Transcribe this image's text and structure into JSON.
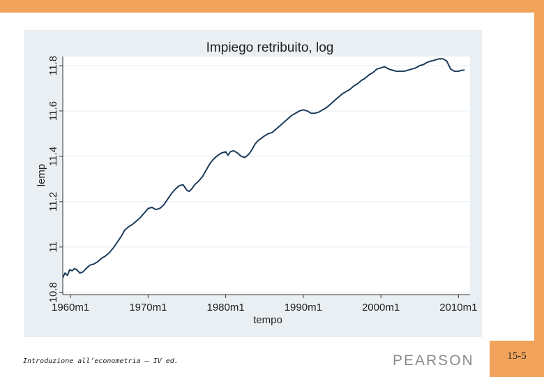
{
  "slide": {
    "footer": "Introduzione all’econometria – IV ed.",
    "publisher": "PEARSON",
    "page_number": "15-5"
  },
  "colors": {
    "accent": "#f2a35b",
    "plot_bg": "#e9eff3",
    "line": "#1b3b5a"
  },
  "chart_data": {
    "type": "line",
    "title": "Impiego retribuito, log",
    "xlabel": "tempo",
    "ylabel": "lemp",
    "x_ticks": [
      "1960m1",
      "1970m1",
      "1980m1",
      "1990m1",
      "2000m1",
      "2010m1"
    ],
    "y_ticks": [
      "10.8",
      "11",
      "11.2",
      "11.4",
      "11.6",
      "11.8"
    ],
    "xlim": [
      1959.0,
      2011.5
    ],
    "ylim": [
      10.79,
      11.84
    ],
    "grid": true,
    "series": [
      {
        "x": [
          1959.0,
          1959.3,
          1959.6,
          1959.9,
          1960.2,
          1960.5,
          1960.8,
          1961.2,
          1961.6,
          1962.0,
          1962.5,
          1963.0,
          1963.5,
          1964.0,
          1964.5,
          1965.0,
          1965.5,
          1966.0,
          1966.5,
          1967.0,
          1967.5,
          1968.0,
          1968.5,
          1969.0,
          1969.5,
          1970.0,
          1970.5,
          1971.0,
          1971.5,
          1972.0,
          1972.5,
          1973.0,
          1973.5,
          1974.0,
          1974.5,
          1975.0,
          1975.3,
          1975.7,
          1976.0,
          1976.5,
          1977.0,
          1977.5,
          1978.0,
          1978.5,
          1979.0,
          1979.5,
          1980.0,
          1980.3,
          1980.6,
          1981.0,
          1981.5,
          1982.0,
          1982.5,
          1983.0,
          1983.4,
          1983.8,
          1984.2,
          1984.6,
          1985.0,
          1985.5,
          1986.0,
          1986.5,
          1987.0,
          1987.5,
          1988.0,
          1988.5,
          1989.0,
          1989.5,
          1990.0,
          1990.5,
          1991.0,
          1991.5,
          1992.0,
          1992.5,
          1993.0,
          1993.5,
          1994.0,
          1994.5,
          1995.0,
          1995.5,
          1996.0,
          1996.5,
          1997.0,
          1997.5,
          1998.0,
          1998.5,
          1999.0,
          1999.5,
          2000.0,
          2000.5,
          2001.0,
          2001.5,
          2002.0,
          2002.5,
          2003.0,
          2003.5,
          2004.0,
          2004.5,
          2005.0,
          2005.5,
          2006.0,
          2006.5,
          2007.0,
          2007.5,
          2008.0,
          2008.5,
          2009.0,
          2009.5,
          2010.0,
          2010.5,
          2010.8
        ],
        "y": [
          10.865,
          10.885,
          10.875,
          10.9,
          10.895,
          10.905,
          10.9,
          10.885,
          10.89,
          10.905,
          10.92,
          10.925,
          10.935,
          10.95,
          10.96,
          10.975,
          10.995,
          11.02,
          11.045,
          11.075,
          11.09,
          11.1,
          11.115,
          11.13,
          11.15,
          11.17,
          11.175,
          11.165,
          11.17,
          11.185,
          11.21,
          11.235,
          11.255,
          11.27,
          11.275,
          11.25,
          11.245,
          11.26,
          11.275,
          11.29,
          11.31,
          11.34,
          11.37,
          11.39,
          11.405,
          11.415,
          11.42,
          11.405,
          11.42,
          11.425,
          11.415,
          11.4,
          11.395,
          11.41,
          11.43,
          11.455,
          11.47,
          11.48,
          11.49,
          11.5,
          11.505,
          11.52,
          11.535,
          11.55,
          11.565,
          11.58,
          11.59,
          11.6,
          11.605,
          11.6,
          11.59,
          11.59,
          11.595,
          11.605,
          11.615,
          11.63,
          11.645,
          11.66,
          11.675,
          11.685,
          11.695,
          11.71,
          11.72,
          11.735,
          11.745,
          11.76,
          11.77,
          11.785,
          11.79,
          11.795,
          11.785,
          11.78,
          11.775,
          11.775,
          11.775,
          11.78,
          11.785,
          11.79,
          11.8,
          11.805,
          11.815,
          11.82,
          11.825,
          11.83,
          11.83,
          11.82,
          11.785,
          11.775,
          11.775,
          11.78,
          11.78
        ]
      }
    ]
  }
}
